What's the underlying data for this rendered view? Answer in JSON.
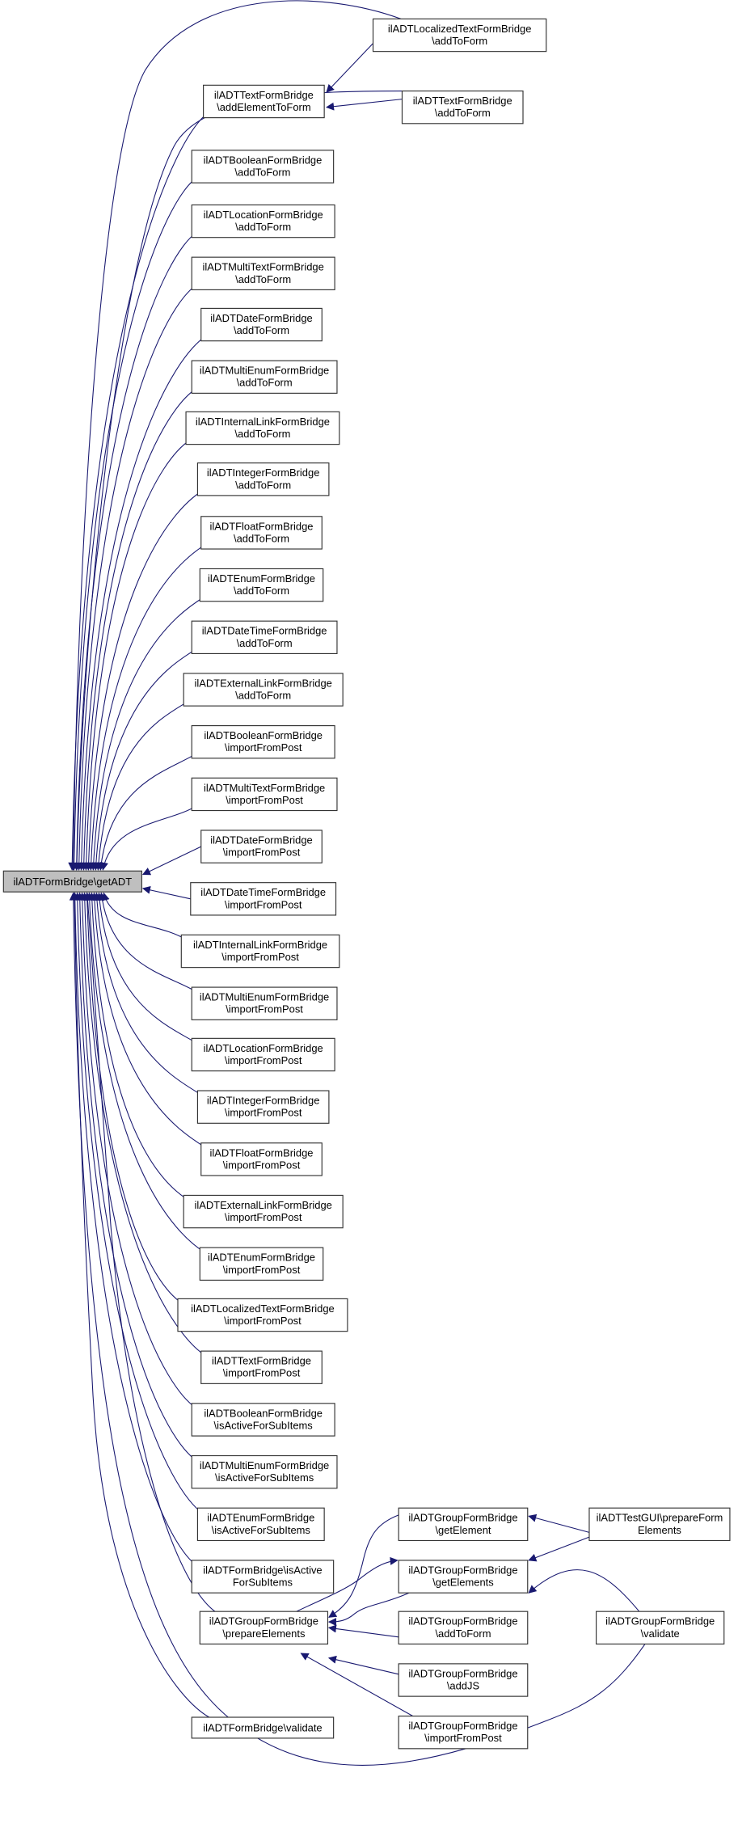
{
  "colors": {
    "edge": "#191970",
    "root_fill": "#bfbfbf",
    "node_fill": "#ffffff"
  },
  "nodes": [
    {
      "id": "root",
      "lines": [
        "ilADTFormBridge\\getADT"
      ]
    },
    {
      "id": "text_addElementToForm",
      "lines": [
        "ilADTTextFormBridge",
        "\\addElementToForm"
      ]
    },
    {
      "id": "boolean_addToForm",
      "lines": [
        "ilADTBooleanFormBridge",
        "\\addToForm"
      ]
    },
    {
      "id": "location_addToForm",
      "lines": [
        "ilADTLocationFormBridge",
        "\\addToForm"
      ]
    },
    {
      "id": "multitext_addToForm",
      "lines": [
        "ilADTMultiTextFormBridge",
        "\\addToForm"
      ]
    },
    {
      "id": "date_addToForm",
      "lines": [
        "ilADTDateFormBridge",
        "\\addToForm"
      ]
    },
    {
      "id": "multienum_addToForm",
      "lines": [
        "ilADTMultiEnumFormBridge",
        "\\addToForm"
      ]
    },
    {
      "id": "internallink_addToForm",
      "lines": [
        "ilADTInternalLinkFormBridge",
        "\\addToForm"
      ]
    },
    {
      "id": "integer_addToForm",
      "lines": [
        "ilADTIntegerFormBridge",
        "\\addToForm"
      ]
    },
    {
      "id": "float_addToForm",
      "lines": [
        "ilADTFloatFormBridge",
        "\\addToForm"
      ]
    },
    {
      "id": "enum_addToForm",
      "lines": [
        "ilADTEnumFormBridge",
        "\\addToForm"
      ]
    },
    {
      "id": "datetime_addToForm",
      "lines": [
        "ilADTDateTimeFormBridge",
        "\\addToForm"
      ]
    },
    {
      "id": "externallink_addToForm",
      "lines": [
        "ilADTExternalLinkFormBridge",
        "\\addToForm"
      ]
    },
    {
      "id": "boolean_importFromPost",
      "lines": [
        "ilADTBooleanFormBridge",
        "\\importFromPost"
      ]
    },
    {
      "id": "multitext_importFromPost",
      "lines": [
        "ilADTMultiTextFormBridge",
        "\\importFromPost"
      ]
    },
    {
      "id": "date_importFromPost",
      "lines": [
        "ilADTDateFormBridge",
        "\\importFromPost"
      ]
    },
    {
      "id": "datetime_importFromPost",
      "lines": [
        "ilADTDateTimeFormBridge",
        "\\importFromPost"
      ]
    },
    {
      "id": "internallink_importFromPost",
      "lines": [
        "ilADTInternalLinkFormBridge",
        "\\importFromPost"
      ]
    },
    {
      "id": "multienum_importFromPost",
      "lines": [
        "ilADTMultiEnumFormBridge",
        "\\importFromPost"
      ]
    },
    {
      "id": "location_importFromPost",
      "lines": [
        "ilADTLocationFormBridge",
        "\\importFromPost"
      ]
    },
    {
      "id": "integer_importFromPost",
      "lines": [
        "ilADTIntegerFormBridge",
        "\\importFromPost"
      ]
    },
    {
      "id": "float_importFromPost",
      "lines": [
        "ilADTFloatFormBridge",
        "\\importFromPost"
      ]
    },
    {
      "id": "externallink_importFromPost",
      "lines": [
        "ilADTExternalLinkFormBridge",
        "\\importFromPost"
      ]
    },
    {
      "id": "enum_importFromPost",
      "lines": [
        "ilADTEnumFormBridge",
        "\\importFromPost"
      ]
    },
    {
      "id": "localizedtext_importFromPost",
      "lines": [
        "ilADTLocalizedTextFormBridge",
        "\\importFromPost"
      ]
    },
    {
      "id": "text_importFromPost",
      "lines": [
        "ilADTTextFormBridge",
        "\\importFromPost"
      ]
    },
    {
      "id": "boolean_isActiveForSubItems",
      "lines": [
        "ilADTBooleanFormBridge",
        "\\isActiveForSubItems"
      ]
    },
    {
      "id": "multienum_isActiveForSubItems",
      "lines": [
        "ilADTMultiEnumFormBridge",
        "\\isActiveForSubItems"
      ]
    },
    {
      "id": "enum_isActiveForSubItems",
      "lines": [
        "ilADTEnumFormBridge",
        "\\isActiveForSubItems"
      ]
    },
    {
      "id": "formbridge_isActiveForSubItems",
      "lines": [
        "ilADTFormBridge\\isActive",
        "ForSubItems"
      ]
    },
    {
      "id": "group_prepareElements",
      "lines": [
        "ilADTGroupFormBridge",
        "\\prepareElements"
      ]
    },
    {
      "id": "formbridge_validate",
      "lines": [
        "ilADTFormBridge\\validate"
      ]
    },
    {
      "id": "localizedtext_addToForm",
      "lines": [
        "ilADTLocalizedTextFormBridge",
        "\\addToForm"
      ]
    },
    {
      "id": "text_addToForm",
      "lines": [
        "ilADTTextFormBridge",
        "\\addToForm"
      ]
    },
    {
      "id": "group_getElement",
      "lines": [
        "ilADTGroupFormBridge",
        "\\getElement"
      ]
    },
    {
      "id": "group_getElements",
      "lines": [
        "ilADTGroupFormBridge",
        "\\getElements"
      ]
    },
    {
      "id": "group_addToForm",
      "lines": [
        "ilADTGroupFormBridge",
        "\\addToForm"
      ]
    },
    {
      "id": "group_addJS",
      "lines": [
        "ilADTGroupFormBridge",
        "\\addJS"
      ]
    },
    {
      "id": "group_importFromPost",
      "lines": [
        "ilADTGroupFormBridge",
        "\\importFromPost"
      ]
    },
    {
      "id": "testgui_prepareFormElements",
      "lines": [
        "ilADTTestGUI\\prepareForm",
        "Elements"
      ]
    },
    {
      "id": "group_validate",
      "lines": [
        "ilADTGroupFormBridge",
        "\\validate"
      ]
    }
  ],
  "edges": [
    [
      "localizedtext_addToForm",
      "root"
    ],
    [
      "localizedtext_addToForm",
      "text_addElementToForm"
    ],
    [
      "text_addToForm",
      "text_addElementToForm"
    ],
    [
      "text_addToForm",
      "root"
    ],
    [
      "text_addElementToForm",
      "root"
    ],
    [
      "boolean_addToForm",
      "root"
    ],
    [
      "location_addToForm",
      "root"
    ],
    [
      "multitext_addToForm",
      "root"
    ],
    [
      "date_addToForm",
      "root"
    ],
    [
      "multienum_addToForm",
      "root"
    ],
    [
      "internallink_addToForm",
      "root"
    ],
    [
      "integer_addToForm",
      "root"
    ],
    [
      "float_addToForm",
      "root"
    ],
    [
      "enum_addToForm",
      "root"
    ],
    [
      "datetime_addToForm",
      "root"
    ],
    [
      "externallink_addToForm",
      "root"
    ],
    [
      "boolean_importFromPost",
      "root"
    ],
    [
      "multitext_importFromPost",
      "root"
    ],
    [
      "date_importFromPost",
      "root"
    ],
    [
      "datetime_importFromPost",
      "root"
    ],
    [
      "internallink_importFromPost",
      "root"
    ],
    [
      "multienum_importFromPost",
      "root"
    ],
    [
      "location_importFromPost",
      "root"
    ],
    [
      "integer_importFromPost",
      "root"
    ],
    [
      "float_importFromPost",
      "root"
    ],
    [
      "externallink_importFromPost",
      "root"
    ],
    [
      "enum_importFromPost",
      "root"
    ],
    [
      "localizedtext_importFromPost",
      "root"
    ],
    [
      "text_importFromPost",
      "root"
    ],
    [
      "boolean_isActiveForSubItems",
      "root"
    ],
    [
      "multienum_isActiveForSubItems",
      "root"
    ],
    [
      "enum_isActiveForSubItems",
      "root"
    ],
    [
      "formbridge_isActiveForSubItems",
      "root"
    ],
    [
      "group_prepareElements",
      "root"
    ],
    [
      "formbridge_validate",
      "root"
    ],
    [
      "group_prepareElements",
      "group_getElements"
    ],
    [
      "group_getElement",
      "group_prepareElements"
    ],
    [
      "group_getElements",
      "group_prepareElements"
    ],
    [
      "group_addToForm",
      "group_prepareElements"
    ],
    [
      "group_addJS",
      "group_prepareElements"
    ],
    [
      "group_importFromPost",
      "group_prepareElements"
    ],
    [
      "testgui_prepareFormElements",
      "group_getElement"
    ],
    [
      "testgui_prepareFormElements",
      "group_getElements"
    ],
    [
      "group_validate",
      "group_getElements"
    ],
    [
      "group_validate",
      "root"
    ]
  ]
}
